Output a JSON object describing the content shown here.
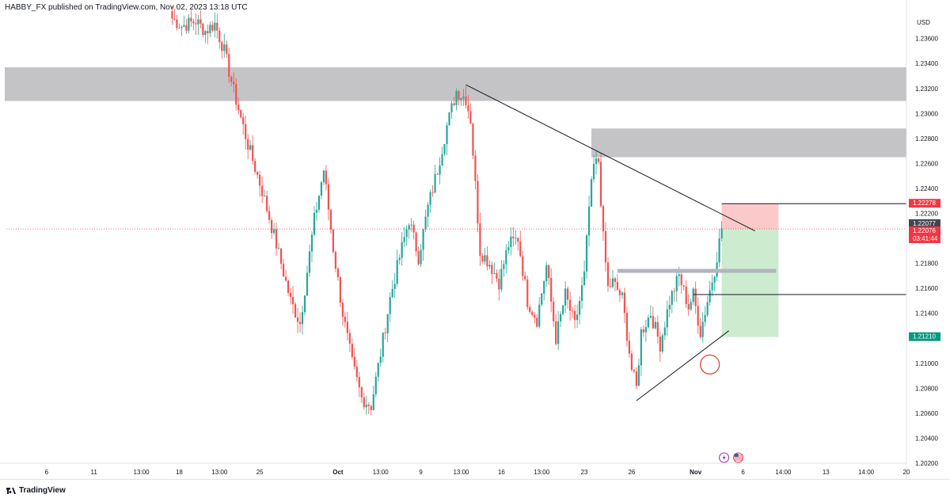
{
  "header": {
    "publisher": "HABBY_FX published on TradingView.com, Nov 02, 2023 13:18 UTC"
  },
  "footer": {
    "brand": "TradingView"
  },
  "chart_data": {
    "type": "candlestick",
    "currency_label": "USD",
    "ylim": [
      1.202,
      1.2382
    ],
    "y_ticks": [
      1.236,
      1.234,
      1.232,
      1.23,
      1.228,
      1.226,
      1.224,
      1.222,
      1.218,
      1.216,
      1.214,
      1.21,
      1.208,
      1.206,
      1.204,
      1.202
    ],
    "y_tick_labels": [
      "1.23600",
      "1.23400",
      "1.23200",
      "1.23000",
      "1.22800",
      "1.22600",
      "1.22400",
      "1.22200",
      "1.21800",
      "1.21600",
      "1.21400",
      "1.21000",
      "1.20800",
      "1.20600",
      "1.20400",
      "1.20200"
    ],
    "x_count": 380,
    "x_ticks": [
      {
        "i": 17,
        "label": "6"
      },
      {
        "i": 37,
        "label": "11"
      },
      {
        "i": 57,
        "label": "13:00"
      },
      {
        "i": 73,
        "label": "18"
      },
      {
        "i": 90,
        "label": "13:00"
      },
      {
        "i": 107,
        "label": "25"
      },
      {
        "i": 140,
        "label": "Oct"
      },
      {
        "i": 158,
        "label": "13:00"
      },
      {
        "i": 175,
        "label": "9"
      },
      {
        "i": 192,
        "label": "13:00"
      },
      {
        "i": 209,
        "label": "16"
      },
      {
        "i": 226,
        "label": "13:00"
      },
      {
        "i": 244,
        "label": "23"
      },
      {
        "i": 264,
        "label": "26"
      },
      {
        "i": 291,
        "label": "Nov"
      },
      {
        "i": 311,
        "label": "6"
      },
      {
        "i": 328,
        "label": "14:00"
      },
      {
        "i": 346,
        "label": "13"
      },
      {
        "i": 363,
        "label": "14:00"
      },
      {
        "i": 380,
        "label": "20"
      }
    ],
    "waypoints": [
      [
        70,
        1.2376
      ],
      [
        74,
        1.237
      ],
      [
        80,
        1.2374
      ],
      [
        84,
        1.2366
      ],
      [
        88,
        1.2372
      ],
      [
        92,
        1.235
      ],
      [
        96,
        1.2318
      ],
      [
        102,
        1.2275
      ],
      [
        108,
        1.2238
      ],
      [
        114,
        1.2195
      ],
      [
        120,
        1.215
      ],
      [
        124,
        1.2132
      ],
      [
        130,
        1.2215
      ],
      [
        134,
        1.2255
      ],
      [
        138,
        1.2192
      ],
      [
        142,
        1.214
      ],
      [
        146,
        1.21
      ],
      [
        150,
        1.2072
      ],
      [
        154,
        1.2066
      ],
      [
        158,
        1.2108
      ],
      [
        162,
        1.2152
      ],
      [
        166,
        1.2185
      ],
      [
        170,
        1.2215
      ],
      [
        174,
        1.2185
      ],
      [
        178,
        1.2225
      ],
      [
        182,
        1.2255
      ],
      [
        186,
        1.229
      ],
      [
        190,
        1.2318
      ],
      [
        194,
        1.2312
      ],
      [
        196,
        1.2295
      ],
      [
        200,
        1.219
      ],
      [
        204,
        1.218
      ],
      [
        208,
        1.2165
      ],
      [
        212,
        1.2195
      ],
      [
        216,
        1.22
      ],
      [
        220,
        1.215
      ],
      [
        224,
        1.2135
      ],
      [
        228,
        1.2178
      ],
      [
        232,
        1.212
      ],
      [
        236,
        1.2155
      ],
      [
        240,
        1.213
      ],
      [
        244,
        1.217
      ],
      [
        246,
        1.2225
      ],
      [
        248,
        1.2258
      ],
      [
        250,
        1.2262
      ],
      [
        252,
        1.22
      ],
      [
        254,
        1.216
      ],
      [
        256,
        1.2165
      ],
      [
        260,
        1.2152
      ],
      [
        264,
        1.2095
      ],
      [
        266,
        1.208
      ],
      [
        268,
        1.2125
      ],
      [
        272,
        1.214
      ],
      [
        276,
        1.2115
      ],
      [
        280,
        1.215
      ],
      [
        284,
        1.217
      ],
      [
        288,
        1.2145
      ],
      [
        290,
        1.2155
      ],
      [
        293,
        1.2125
      ],
      [
        296,
        1.215
      ],
      [
        299,
        1.2175
      ],
      [
        302,
        1.2208
      ]
    ],
    "last_price": 1.22076,
    "last_price_label": "1.22076",
    "countdown_label": "03:41:44",
    "current_price_label": "1.22077",
    "current_price": 1.22077,
    "stop_label": "1.22278",
    "stop_price": 1.22278,
    "target_label": "1.21210",
    "target_price": 1.2121,
    "zones": [
      {
        "from": 0,
        "to": 380,
        "low": 1.231,
        "high": 1.2337
      },
      {
        "from": 247,
        "to": 380,
        "low": 1.2265,
        "high": 1.2288
      }
    ],
    "position": {
      "from": 302,
      "to": 326,
      "entry": 1.22076,
      "stop": 1.22278,
      "target": 1.2121
    },
    "trendlines": [
      {
        "x1": 194,
        "y1": 1.2323,
        "x2": 316,
        "y2": 1.2206
      },
      {
        "x1": 266,
        "y1": 1.207,
        "x2": 305,
        "y2": 1.2126
      }
    ],
    "levels": [
      {
        "from": 258,
        "to": 325,
        "price": 1.2174,
        "style": "thick-gray"
      },
      {
        "from": 302,
        "to": 380,
        "price": 1.22278,
        "style": "thin-black"
      },
      {
        "from": 290,
        "to": 380,
        "price": 1.2155,
        "style": "thin-black"
      }
    ],
    "highlight_ellipse": {
      "x": 297,
      "y": 1.2099
    },
    "event_icons": [
      {
        "i": 303,
        "type": "lightning-icon"
      },
      {
        "i": 309,
        "type": "us-flag-icon"
      }
    ],
    "colors": {
      "up": "#26a69a",
      "down": "#ef5350",
      "zone": "#c4c4c6",
      "stop_zone": "#fbc9c9",
      "target_zone": "#cdeccf",
      "stop_tag": "#f23645",
      "target_tag": "#089981",
      "current_tag": "#434651",
      "circle": "#e0483e"
    }
  }
}
